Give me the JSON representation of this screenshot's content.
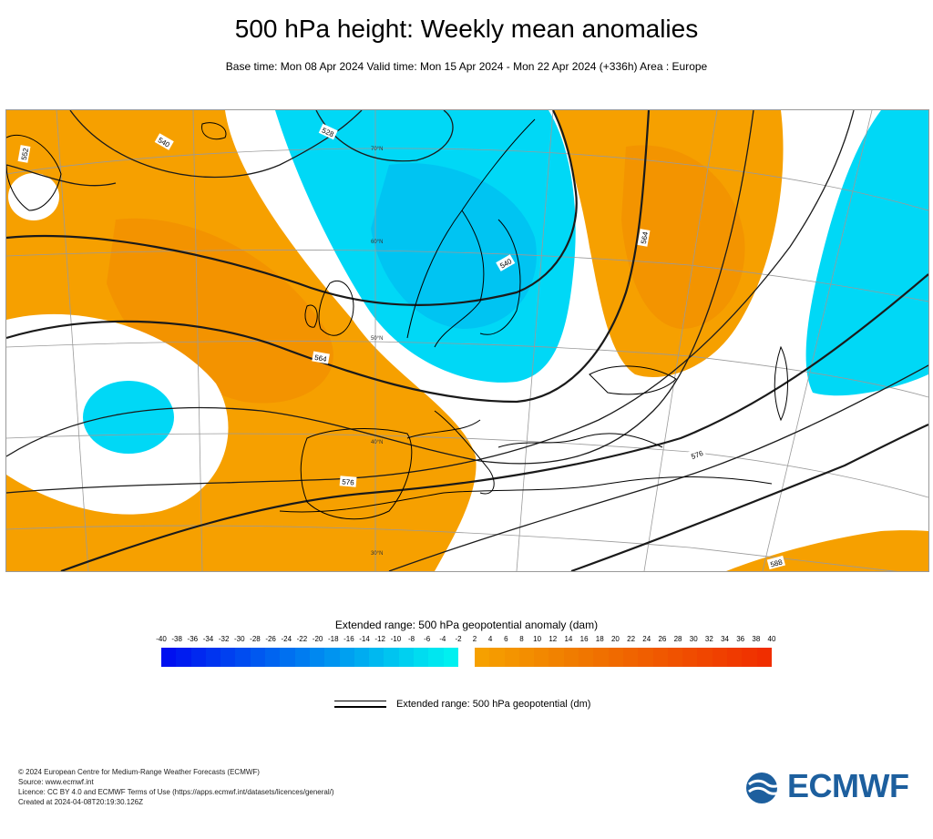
{
  "title": "500 hPa height: Weekly mean anomalies",
  "subtitle": "Base time: Mon 08 Apr 2024 Valid time: Mon 15 Apr 2024 - Mon 22 Apr 2024 (+336h) Area : Europe",
  "map": {
    "contour_labels": [
      "528",
      "540",
      "552",
      "540",
      "564",
      "564",
      "576",
      "576",
      "588"
    ],
    "latitude_labels": [
      "70°N",
      "60°N",
      "50°N",
      "40°N",
      "30°N"
    ],
    "colors": {
      "positive": "#f6a000",
      "positive_strong": "#f08800",
      "negative": "#00d8f6",
      "negative_strong": "#00b8f0",
      "coast": "#000000"
    }
  },
  "colorbar": {
    "title": "Extended range: 500 hPa geopotential anomaly (dam)",
    "negative_ticks": [
      "-40",
      "-38",
      "-36",
      "-34",
      "-32",
      "-30",
      "-28",
      "-26",
      "-24",
      "-22",
      "-20",
      "-18",
      "-16",
      "-14",
      "-12",
      "-10",
      "-8",
      "-6",
      "-4",
      "-2"
    ],
    "positive_ticks": [
      "2",
      "4",
      "6",
      "8",
      "10",
      "12",
      "14",
      "16",
      "18",
      "20",
      "22",
      "24",
      "26",
      "28",
      "30",
      "32",
      "34",
      "36",
      "38",
      "40"
    ],
    "negative_colors": [
      "#0010f0",
      "#001cf0",
      "#0028f0",
      "#0034f0",
      "#0040f0",
      "#004cf0",
      "#0058f0",
      "#0064f0",
      "#0070f0",
      "#007cf0",
      "#0088f0",
      "#0094f0",
      "#00a0f0",
      "#00acf0",
      "#00b8f0",
      "#00c4f0",
      "#00d0f0",
      "#00dcf0",
      "#00e6f0",
      "#00f0f0"
    ],
    "positive_colors": [
      "#f6a000",
      "#f59a00",
      "#f49400",
      "#f38e00",
      "#f28800",
      "#f18200",
      "#f07c00",
      "#f07600",
      "#f07000",
      "#f06a00",
      "#f06400",
      "#f05e00",
      "#f05800",
      "#f05200",
      "#f04c00",
      "#f04600",
      "#f04000",
      "#f03a00",
      "#f03400",
      "#f02e00"
    ]
  },
  "legend": {
    "label": "Extended range: 500 hPa geopotential (dm)"
  },
  "footer": {
    "line1": "© 2024 European Centre for Medium-Range Weather Forecasts (ECMWF)",
    "line2": "Source: www.ecmwf.int",
    "line3": "Licence: CC BY 4.0 and ECMWF Terms of Use (https://apps.ecmwf.int/datasets/licences/general/)",
    "line4": "Created at 2024-04-08T20:19:30.126Z"
  },
  "logo": {
    "text": "ECMWF",
    "color": "#1d5f9e"
  }
}
